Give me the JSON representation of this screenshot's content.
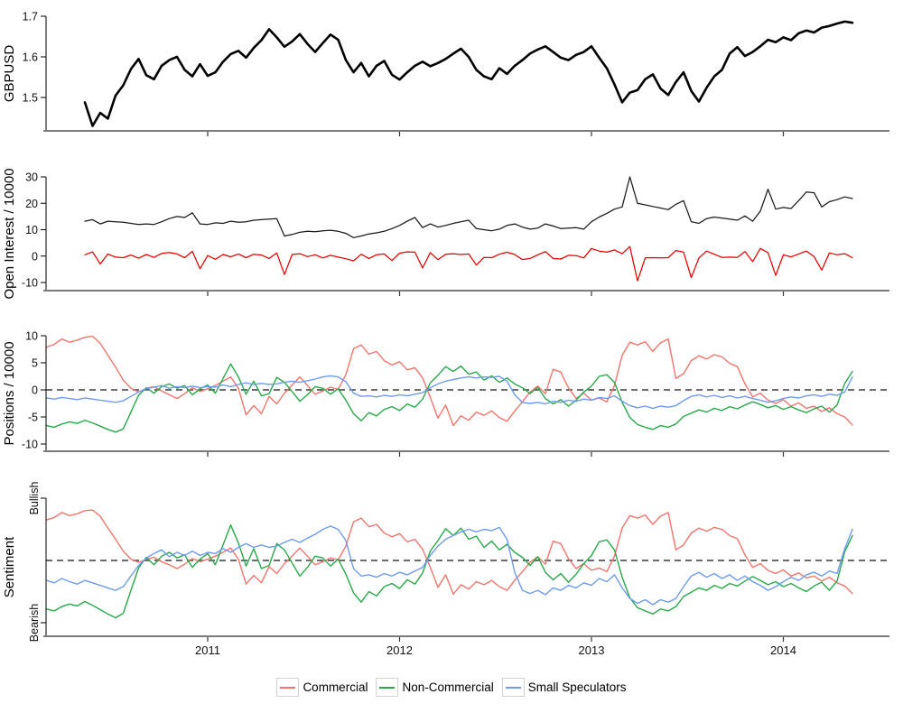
{
  "page": {
    "background": "#ffffff"
  },
  "legend": {
    "items": [
      {
        "label": "Commercial",
        "color": "#f2756d"
      },
      {
        "label": "Non-Commercial",
        "color": "#28a94b"
      },
      {
        "label": "Small Speculators",
        "color": "#6e9bf0"
      }
    ]
  },
  "chart_data": {
    "type": "line",
    "title": "",
    "x_start": 2010.16,
    "x_step": 0.04,
    "n_points": 106,
    "x_range_shown": [
      2010.12,
      2014.55
    ],
    "xticks": [
      {
        "v": 2011,
        "label": "2011"
      },
      {
        "v": 2012,
        "label": "2012"
      },
      {
        "v": 2013,
        "label": "2013"
      },
      {
        "v": 2014,
        "label": "2014"
      }
    ],
    "style": {
      "x_axis_color": "#7a7a7a",
      "y_axis_color": "#000000",
      "tick_color": "#333333",
      "zero_line_color": "#3c3c3c",
      "background": "#ffffff"
    },
    "panels": [
      {
        "id": "price",
        "ylabel": "GBPUSD",
        "ylim": [
          1.418,
          1.718
        ],
        "grid": false,
        "zero_line": false,
        "yticks": [
          {
            "v": 1.5,
            "label": "1.5"
          },
          {
            "v": 1.6,
            "label": "1.6"
          },
          {
            "v": 1.7,
            "label": "1.7"
          }
        ],
        "series": [
          {
            "name": "GBPUSD",
            "key": "gbpusd",
            "color": "#000000",
            "width": 2.6
          }
        ]
      },
      {
        "id": "open_interest",
        "ylabel": "Open Interest / 10000",
        "ylim": [
          -13,
          31
        ],
        "grid": false,
        "zero_line": false,
        "yticks": [
          {
            "v": -10,
            "label": "-10"
          },
          {
            "v": 0,
            "label": "0"
          },
          {
            "v": 10,
            "label": "10"
          },
          {
            "v": 20,
            "label": "20"
          },
          {
            "v": 30,
            "label": "30"
          }
        ],
        "series": [
          {
            "name": "Open Interest",
            "key": "oi_total",
            "color": "#1a1a1a",
            "width": 1.25
          },
          {
            "name": "Open Interest Change",
            "key": "oi_change",
            "color": "#e60000",
            "width": 1.25
          }
        ]
      },
      {
        "id": "positions",
        "ylabel": "Positions / 10000",
        "ylim": [
          -11.3,
          10
        ],
        "grid": false,
        "zero_line": true,
        "yticks": [
          {
            "v": -10,
            "label": "-10"
          },
          {
            "v": -5,
            "label": "-5"
          },
          {
            "v": 0,
            "label": "0"
          },
          {
            "v": 5,
            "label": "5"
          },
          {
            "v": 10,
            "label": "10"
          }
        ],
        "series": [
          {
            "name": "Commercial",
            "key": "commercial",
            "color": "#f2756d",
            "width": 1.4
          },
          {
            "name": "Non-Commercial",
            "key": "noncommercial",
            "color": "#28a94b",
            "width": 1.4
          },
          {
            "name": "Small Speculators",
            "key": "small_speculators",
            "color": "#6e9bf0",
            "width": 1.4
          }
        ]
      },
      {
        "id": "sentiment",
        "ylabel": "Sentiment",
        "ylim": [
          -1.22,
          1.0
        ],
        "grid": false,
        "zero_line": true,
        "yticks": [
          {
            "v": 1,
            "label": "Bullish",
            "rotated": true
          },
          {
            "v": -1,
            "label": "Bearish",
            "rotated": true
          }
        ],
        "series": [
          {
            "name": "Commercial",
            "key": "sentiment_commercial",
            "color": "#f2756d",
            "width": 1.4
          },
          {
            "name": "Non-Commercial",
            "key": "sentiment_noncommercial",
            "color": "#28a94b",
            "width": 1.4
          },
          {
            "name": "Small Speculators",
            "key": "sentiment_small_speculators",
            "color": "#6e9bf0",
            "width": 1.4
          }
        ]
      }
    ],
    "series_data": {
      "gbpusd": [
        null,
        null,
        null,
        null,
        null,
        1.488,
        1.43,
        1.462,
        1.448,
        1.505,
        1.53,
        1.57,
        1.595,
        1.555,
        1.545,
        1.578,
        1.592,
        1.6,
        1.568,
        1.552,
        1.582,
        1.553,
        1.562,
        1.588,
        1.607,
        1.615,
        1.598,
        1.622,
        1.641,
        1.668,
        1.648,
        1.625,
        1.638,
        1.656,
        1.632,
        1.612,
        1.634,
        1.655,
        1.642,
        1.592,
        1.562,
        1.585,
        1.552,
        1.578,
        1.59,
        1.556,
        1.544,
        1.562,
        1.578,
        1.588,
        1.577,
        1.585,
        1.595,
        1.608,
        1.62,
        1.6,
        1.568,
        1.552,
        1.545,
        1.572,
        1.558,
        1.578,
        1.592,
        1.608,
        1.618,
        1.626,
        1.612,
        1.598,
        1.592,
        1.605,
        1.612,
        1.626,
        1.598,
        1.572,
        1.532,
        1.488,
        1.512,
        1.518,
        1.545,
        1.557,
        1.522,
        1.506,
        1.538,
        1.562,
        1.516,
        1.49,
        1.524,
        1.552,
        1.568,
        1.608,
        1.624,
        1.602,
        1.612,
        1.626,
        1.642,
        1.636,
        1.648,
        1.641,
        1.658,
        1.665,
        1.66,
        1.672,
        1.676,
        1.682,
        1.687,
        1.684
      ],
      "oi_total": [
        null,
        null,
        null,
        null,
        null,
        13.2,
        13.8,
        12.2,
        13.2,
        13.0,
        12.8,
        12.4,
        12.0,
        12.2,
        12.0,
        13.0,
        14.2,
        15.0,
        14.6,
        16.4,
        12.2,
        12.0,
        12.6,
        12.4,
        13.2,
        12.8,
        13.0,
        13.6,
        13.8,
        14.0,
        14.2,
        7.6,
        8.2,
        9.0,
        9.4,
        9.2,
        9.6,
        9.8,
        9.4,
        8.6,
        7.0,
        7.6,
        8.4,
        8.8,
        9.4,
        10.4,
        11.6,
        13.2,
        14.6,
        10.8,
        12.2,
        11.0,
        11.6,
        12.4,
        13.0,
        13.6,
        10.4,
        10.0,
        9.6,
        10.2,
        11.6,
        12.2,
        11.0,
        10.2,
        10.6,
        12.2,
        11.4,
        10.4,
        10.6,
        10.8,
        10.2,
        13.0,
        14.8,
        16.2,
        17.8,
        18.6,
        30.0,
        20.0,
        19.4,
        18.8,
        18.2,
        17.6,
        19.6,
        21.0,
        13.0,
        12.4,
        14.2,
        14.8,
        14.4,
        14.0,
        13.6,
        15.2,
        13.2,
        17.0,
        25.3,
        17.8,
        18.4,
        18.0,
        21.0,
        24.3,
        24.0,
        18.6,
        20.6,
        21.4,
        22.4,
        21.8
      ],
      "oi_change": [
        null,
        null,
        null,
        null,
        null,
        0.5,
        1.6,
        -3.0,
        0.8,
        -0.4,
        -0.6,
        0.4,
        -0.8,
        0.6,
        -0.5,
        1.0,
        1.4,
        0.8,
        -0.6,
        1.8,
        -4.8,
        0.2,
        -1.2,
        0.6,
        -0.3,
        0.8,
        -0.6,
        0.7,
        0.4,
        -0.9,
        1.2,
        -7.0,
        0.6,
        0.9,
        -0.2,
        0.5,
        -0.7,
        0.3,
        -0.4,
        -1.0,
        -1.8,
        0.7,
        -0.9,
        0.5,
        0.8,
        -1.7,
        1.1,
        1.6,
        1.5,
        -4.5,
        1.3,
        -1.4,
        0.7,
        0.9,
        0.6,
        0.8,
        -3.4,
        -0.5,
        -0.6,
        0.7,
        1.5,
        0.6,
        -1.3,
        -0.9,
        0.5,
        1.7,
        -0.9,
        -1.1,
        0.3,
        0.2,
        -0.7,
        2.9,
        1.9,
        1.5,
        2.3,
        0.9,
        3.6,
        -9.4,
        -0.7,
        -0.6,
        -0.7,
        -0.6,
        2.1,
        1.5,
        -8.2,
        -0.7,
        1.9,
        0.7,
        -0.5,
        -0.4,
        -0.5,
        1.7,
        -2.1,
        2.9,
        1.3,
        -7.3,
        0.5,
        -0.3,
        0.8,
        1.9,
        -0.2,
        -5.3,
        1.2,
        0.5,
        0.9,
        -0.6
      ],
      "commercial": [
        7.9,
        8.4,
        9.4,
        8.8,
        9.2,
        9.7,
        9.9,
        8.6,
        6.4,
        4.2,
        1.8,
        0.3,
        -0.4,
        0.3,
        0.6,
        -0.2,
        -0.9,
        -1.6,
        -0.7,
        0.4,
        -0.3,
        0.2,
        0.8,
        1.6,
        2.4,
        0.3,
        -4.6,
        -2.9,
        -4.4,
        -1.2,
        -2.6,
        -0.6,
        0.9,
        2.4,
        0.8,
        -0.8,
        -0.2,
        0.5,
        0.1,
        2.8,
        7.6,
        8.3,
        6.6,
        7.1,
        5.4,
        4.6,
        5.2,
        3.7,
        4.1,
        2.2,
        -1.4,
        -5.2,
        -2.8,
        -6.6,
        -4.8,
        -5.6,
        -4.1,
        -4.7,
        -3.9,
        -5.1,
        -5.8,
        -3.9,
        -2.2,
        -0.4,
        0.7,
        -0.7,
        3.8,
        3.3,
        0.4,
        -1.6,
        -0.6,
        -1.9,
        -1.5,
        -2.2,
        0.8,
        6.4,
        8.8,
        8.3,
        8.9,
        7.1,
        8.7,
        9.4,
        2.1,
        3.0,
        5.4,
        6.3,
        5.7,
        6.5,
        6.1,
        4.9,
        4.3,
        1.1,
        -1.3,
        -0.6,
        -1.9,
        -2.5,
        -1.8,
        -3.0,
        -2.4,
        -3.4,
        -3.0,
        -4.0,
        -3.3,
        -4.4,
        -5.0,
        -6.5
      ],
      "noncommercial": [
        -6.6,
        -6.9,
        -6.3,
        -5.9,
        -6.2,
        -5.6,
        -6.1,
        -6.7,
        -7.3,
        -7.8,
        -7.2,
        -4.1,
        -1.0,
        0.4,
        -0.6,
        0.6,
        1.1,
        0.3,
        0.8,
        -0.9,
        0.2,
        0.9,
        -0.6,
        2.1,
        4.8,
        2.4,
        -0.8,
        1.6,
        -1.1,
        -0.7,
        2.3,
        1.4,
        -0.3,
        -2.1,
        -0.9,
        0.6,
        0.3,
        -0.8,
        0.2,
        -1.9,
        -4.4,
        -5.7,
        -4.2,
        -4.8,
        -3.6,
        -3.1,
        -3.8,
        -2.6,
        -3.2,
        -1.7,
        1.3,
        2.7,
        4.3,
        3.4,
        4.4,
        2.9,
        3.3,
        1.8,
        2.6,
        1.4,
        2.2,
        1.1,
        0.4,
        -0.7,
        0.5,
        -1.6,
        -2.6,
        -1.8,
        -3.0,
        -1.9,
        -0.4,
        0.7,
        2.5,
        2.8,
        1.4,
        -2.3,
        -5.1,
        -6.4,
        -6.9,
        -7.3,
        -6.6,
        -6.9,
        -6.3,
        -4.9,
        -4.3,
        -3.7,
        -4.1,
        -3.4,
        -3.8,
        -3.1,
        -3.5,
        -2.8,
        -2.2,
        -2.7,
        -3.3,
        -2.9,
        -3.6,
        -3.1,
        -3.7,
        -4.2,
        -3.5,
        -3.0,
        -4.1,
        -2.8,
        1.2,
        3.4
      ],
      "small_speculators": [
        -1.5,
        -1.7,
        -1.4,
        -1.6,
        -1.8,
        -1.5,
        -1.7,
        -1.9,
        -2.1,
        -2.3,
        -2.0,
        -1.2,
        -0.4,
        0.2,
        0.5,
        0.8,
        0.3,
        0.6,
        0.4,
        0.7,
        0.4,
        0.6,
        0.5,
        0.9,
        0.6,
        1.0,
        1.3,
        1.0,
        1.2,
        1.0,
        1.1,
        1.4,
        1.6,
        1.4,
        1.7,
        2.0,
        2.4,
        2.6,
        2.4,
        1.5,
        -0.6,
        -1.2,
        -1.1,
        -1.3,
        -1.0,
        -1.2,
        -0.9,
        -1.1,
        -0.8,
        -0.5,
        0.4,
        1.1,
        1.6,
        1.9,
        2.2,
        2.4,
        2.2,
        2.4,
        2.3,
        2.5,
        1.6,
        -0.9,
        -2.3,
        -2.5,
        -2.3,
        -2.6,
        -2.1,
        -2.3,
        -1.9,
        -2.1,
        -1.7,
        -1.9,
        -1.4,
        -1.6,
        -1.1,
        -2.1,
        -2.9,
        -3.3,
        -3.0,
        -3.4,
        -3.0,
        -3.2,
        -2.9,
        -2.0,
        -1.2,
        -0.9,
        -1.3,
        -1.0,
        -1.4,
        -1.1,
        -1.5,
        -1.2,
        -1.6,
        -1.9,
        -2.3,
        -2.0,
        -1.6,
        -1.3,
        -1.5,
        -1.1,
        -0.9,
        -1.2,
        -0.8,
        -1.0,
        -0.4,
        2.4
      ],
      "sentiment_commercial": [
        0.65,
        0.69,
        0.77,
        0.72,
        0.75,
        0.8,
        0.81,
        0.71,
        0.52,
        0.34,
        0.15,
        0.02,
        -0.03,
        0.02,
        0.05,
        -0.02,
        -0.07,
        -0.13,
        -0.06,
        0.03,
        -0.02,
        0.02,
        0.07,
        0.13,
        0.2,
        0.02,
        -0.38,
        -0.24,
        -0.36,
        -0.1,
        -0.21,
        -0.05,
        0.07,
        0.2,
        0.07,
        -0.07,
        -0.02,
        0.04,
        0.01,
        0.23,
        0.62,
        0.68,
        0.54,
        0.58,
        0.44,
        0.38,
        0.43,
        0.3,
        0.34,
        0.18,
        -0.11,
        -0.43,
        -0.23,
        -0.54,
        -0.39,
        -0.46,
        -0.34,
        -0.39,
        -0.32,
        -0.42,
        -0.48,
        -0.32,
        -0.18,
        -0.03,
        0.06,
        -0.06,
        0.31,
        0.27,
        0.03,
        -0.13,
        -0.05,
        -0.16,
        -0.12,
        -0.18,
        0.07,
        0.52,
        0.72,
        0.68,
        0.73,
        0.58,
        0.71,
        0.77,
        0.17,
        0.25,
        0.44,
        0.52,
        0.47,
        0.53,
        0.5,
        0.4,
        0.35,
        0.09,
        -0.11,
        -0.05,
        -0.16,
        -0.21,
        -0.15,
        -0.25,
        -0.2,
        -0.28,
        -0.25,
        -0.33,
        -0.27,
        -0.36,
        -0.41,
        -0.53
      ],
      "sentiment_noncommercial": [
        -0.78,
        -0.81,
        -0.74,
        -0.7,
        -0.73,
        -0.66,
        -0.72,
        -0.79,
        -0.86,
        -0.92,
        -0.85,
        -0.48,
        -0.12,
        0.05,
        -0.07,
        0.07,
        0.13,
        0.04,
        0.09,
        -0.11,
        0.02,
        0.11,
        -0.07,
        0.25,
        0.57,
        0.28,
        -0.09,
        0.19,
        -0.13,
        -0.08,
        0.27,
        0.17,
        -0.04,
        -0.25,
        -0.11,
        0.07,
        0.04,
        -0.09,
        0.02,
        -0.22,
        -0.52,
        -0.67,
        -0.5,
        -0.57,
        -0.42,
        -0.37,
        -0.45,
        -0.31,
        -0.38,
        -0.2,
        0.15,
        0.32,
        0.51,
        0.4,
        0.52,
        0.34,
        0.39,
        0.21,
        0.31,
        0.17,
        0.26,
        0.13,
        0.05,
        -0.08,
        0.06,
        -0.19,
        -0.31,
        -0.21,
        -0.35,
        -0.22,
        -0.05,
        0.08,
        0.3,
        0.33,
        0.17,
        -0.27,
        -0.6,
        -0.76,
        -0.81,
        -0.86,
        -0.78,
        -0.81,
        -0.74,
        -0.58,
        -0.51,
        -0.44,
        -0.48,
        -0.4,
        -0.45,
        -0.37,
        -0.41,
        -0.33,
        -0.26,
        -0.32,
        -0.39,
        -0.34,
        -0.42,
        -0.37,
        -0.44,
        -0.5,
        -0.41,
        -0.35,
        -0.48,
        -0.33,
        0.14,
        0.4
      ],
      "sentiment_small_speculators": [
        -0.32,
        -0.36,
        -0.29,
        -0.34,
        -0.38,
        -0.32,
        -0.36,
        -0.4,
        -0.44,
        -0.48,
        -0.42,
        -0.25,
        -0.08,
        0.04,
        0.11,
        0.17,
        0.06,
        0.13,
        0.08,
        0.15,
        0.08,
        0.13,
        0.11,
        0.19,
        0.13,
        0.21,
        0.27,
        0.21,
        0.25,
        0.21,
        0.23,
        0.29,
        0.34,
        0.29,
        0.36,
        0.42,
        0.5,
        0.55,
        0.5,
        0.32,
        -0.13,
        -0.25,
        -0.23,
        -0.27,
        -0.21,
        -0.25,
        -0.19,
        -0.23,
        -0.17,
        -0.11,
        0.08,
        0.23,
        0.34,
        0.4,
        0.46,
        0.5,
        0.46,
        0.5,
        0.48,
        0.53,
        0.34,
        -0.19,
        -0.48,
        -0.53,
        -0.48,
        -0.55,
        -0.44,
        -0.48,
        -0.4,
        -0.44,
        -0.36,
        -0.4,
        -0.29,
        -0.34,
        -0.23,
        -0.44,
        -0.61,
        -0.69,
        -0.63,
        -0.71,
        -0.63,
        -0.67,
        -0.61,
        -0.42,
        -0.25,
        -0.19,
        -0.27,
        -0.21,
        -0.29,
        -0.23,
        -0.32,
        -0.25,
        -0.34,
        -0.4,
        -0.48,
        -0.42,
        -0.34,
        -0.27,
        -0.32,
        -0.23,
        -0.19,
        -0.25,
        -0.17,
        -0.21,
        0.19,
        0.5
      ]
    }
  }
}
